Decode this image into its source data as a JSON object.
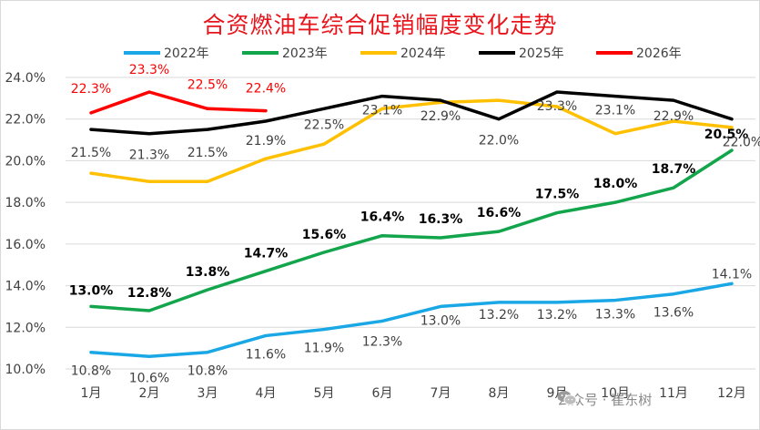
{
  "title": "合资燃油车综合促销幅度变化走势",
  "watermark": "公众号 · 崔东树",
  "chart_data": {
    "type": "line",
    "title": "合资燃油车综合促销幅度变化走势",
    "categories": [
      "1月",
      "2月",
      "3月",
      "4月",
      "5月",
      "6月",
      "7月",
      "8月",
      "9月",
      "10月",
      "11月",
      "12月"
    ],
    "ylim": [
      10,
      24
    ],
    "yticks": [
      "10.0%",
      "12.0%",
      "14.0%",
      "16.0%",
      "18.0%",
      "20.0%",
      "22.0%",
      "24.0%"
    ],
    "grid": true,
    "legend": "top",
    "series": [
      {
        "name": "2022年",
        "color": "#1aa7e6",
        "bold_labels": false,
        "label_pos": "below",
        "values": [
          10.8,
          10.6,
          10.8,
          11.6,
          11.9,
          12.3,
          13.0,
          13.2,
          13.2,
          13.3,
          13.6,
          14.1
        ],
        "labels": [
          "10.8%",
          "10.6%",
          "10.8%",
          "11.6%",
          "11.9%",
          "12.3%",
          "13.0%",
          "13.2%",
          "13.2%",
          "13.3%",
          "13.6%",
          "14.1%"
        ]
      },
      {
        "name": "2023年",
        "color": "#12a54b",
        "bold_labels": true,
        "label_pos": "above",
        "values": [
          13.0,
          12.8,
          13.8,
          14.7,
          15.6,
          16.4,
          16.3,
          16.6,
          17.5,
          18.0,
          18.7,
          20.5
        ],
        "labels": [
          "13.0%",
          "12.8%",
          "13.8%",
          "14.7%",
          "15.6%",
          "16.4%",
          "16.3%",
          "16.6%",
          "17.5%",
          "18.0%",
          "18.7%",
          "20.5%"
        ]
      },
      {
        "name": "2024年",
        "color": "#ffc000",
        "bold_labels": false,
        "label_pos": "above",
        "values": [
          19.4,
          19.0,
          19.0,
          20.1,
          20.8,
          22.5,
          22.8,
          22.9,
          22.6,
          21.3,
          21.9,
          21.6
        ],
        "labels": []
      },
      {
        "name": "2025年",
        "color": "#000000",
        "bold_labels": false,
        "label_pos": "below",
        "values": [
          21.5,
          21.3,
          21.5,
          21.9,
          22.5,
          23.1,
          22.9,
          22.0,
          23.3,
          23.1,
          22.9,
          22.0
        ],
        "labels": [
          "21.5%",
          "21.3%",
          "21.5%",
          "21.9%",
          "22.5%",
          "23.1%",
          "22.9%",
          "22.0%",
          "23.3%",
          "23.1%",
          "22.9%",
          "22.0%"
        ]
      },
      {
        "name": "2026年",
        "color": "#ff0000",
        "bold_labels": false,
        "label_pos": "above",
        "values": [
          22.3,
          23.3,
          22.5,
          22.4,
          null,
          null,
          null,
          null,
          null,
          null,
          null,
          null
        ],
        "labels": [
          "22.3%",
          "23.3%",
          "22.5%",
          "22.4%"
        ]
      }
    ]
  }
}
